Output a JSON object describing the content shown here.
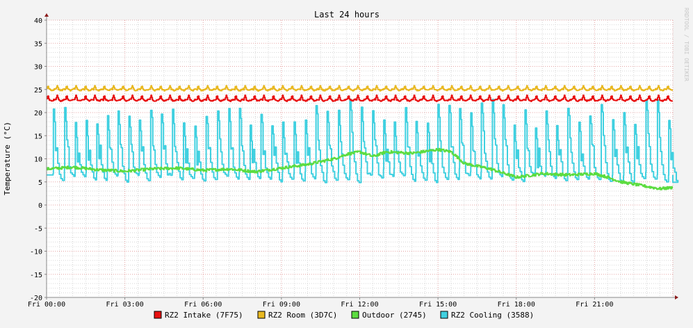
{
  "chart_data": {
    "type": "line",
    "title": "Last 24 hours",
    "ylabel": "Temperature (°C)",
    "watermark": "RRDTOOL / TOBI OETIKER",
    "ylim": [
      -20,
      40
    ],
    "xlim": [
      0,
      24
    ],
    "x_unit": "hours since Fri 00:00",
    "yticks": [
      40,
      35,
      30,
      25,
      20,
      15,
      10,
      5,
      0,
      -5,
      -10,
      -15,
      -20
    ],
    "xticks": [
      {
        "x": 0,
        "label": "Fri 00:00"
      },
      {
        "x": 3,
        "label": "Fri 03:00"
      },
      {
        "x": 6,
        "label": "Fri 06:00"
      },
      {
        "x": 9,
        "label": "Fri 09:00"
      },
      {
        "x": 12,
        "label": "Fri 12:00"
      },
      {
        "x": 15,
        "label": "Fri 15:00"
      },
      {
        "x": 18,
        "label": "Fri 18:00"
      },
      {
        "x": 21,
        "label": "Fri 21:00"
      }
    ],
    "grid": true,
    "legend_position": "bottom",
    "colors": {
      "background": "#f3f3f3",
      "canvas": "#ffffff",
      "major_grid": "#e5a3a3",
      "minor_grid": "#d6d6d6",
      "axis": "#888888",
      "arrow": "#8b1a1a"
    },
    "series": [
      {
        "name": "RZ2 Intake (7F75)",
        "color": "#e81010",
        "pattern": "oscillation",
        "values_summary": {
          "mean": 23.0,
          "min": 22.2,
          "max": 23.8,
          "period_hours": 0.36
        }
      },
      {
        "name": "RZ2 Room (3D7C)",
        "color": "#e8b820",
        "pattern": "oscillation",
        "values_summary": {
          "mean": 25.2,
          "min": 24.6,
          "max": 25.9,
          "period_hours": 0.36
        }
      },
      {
        "name": "Outdoor (2745)",
        "color": "#5cdc40",
        "pattern": "curve",
        "x": [
          0,
          1,
          2,
          3,
          4,
          5,
          6,
          7,
          8,
          9,
          10,
          11,
          11.5,
          12,
          12.5,
          13,
          14,
          15,
          15.5,
          16,
          17,
          18,
          19,
          20,
          21,
          21.5,
          22,
          22.5,
          23,
          23.5,
          24
        ],
        "values": [
          7.8,
          8.2,
          7.6,
          7.3,
          7.8,
          8.0,
          7.5,
          7.8,
          7.2,
          8.0,
          8.8,
          10.0,
          11.0,
          11.5,
          10.5,
          11.5,
          11.2,
          12.0,
          11.5,
          9.0,
          7.8,
          6.0,
          6.8,
          6.5,
          6.8,
          6.0,
          5.0,
          4.5,
          4.0,
          3.5,
          3.8
        ]
      },
      {
        "name": "RZ2 Cooling (3588)",
        "color": "#40d0e0",
        "pattern": "spikes",
        "values_summary": {
          "baseline_min": 4.8,
          "baseline_max": 6.5,
          "peak_min": 16.5,
          "peak_max": 23.0,
          "period_hours": 0.42
        }
      }
    ]
  }
}
